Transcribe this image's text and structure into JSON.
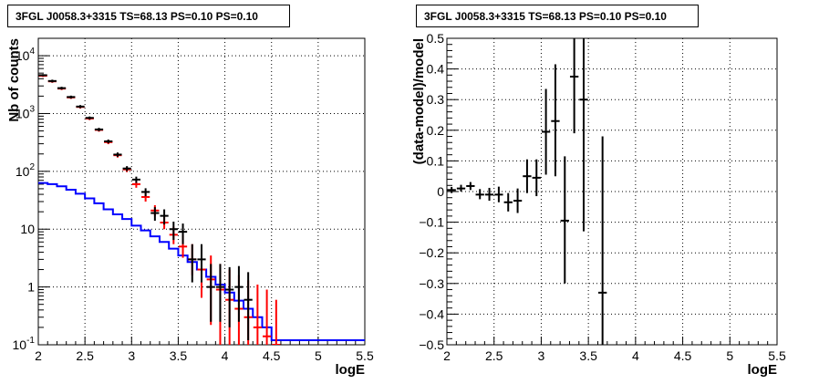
{
  "chart_data": [
    {
      "type": "line",
      "title": "3FGL J0058.3+3315 TS=68.13 PS=0.10 PS=0.10",
      "xlabel": "logE",
      "ylabel": "Nb of counts",
      "x_ticks": [
        "2",
        "2.5",
        "3",
        "3.5",
        "4",
        "4.5",
        "5",
        "5.5"
      ],
      "y_ticks": [
        "10^-1",
        "1",
        "10",
        "10^2",
        "10^3",
        "10^4"
      ],
      "xlim": [
        2,
        5.5
      ],
      "ylim": [
        0.1,
        20000
      ],
      "log_y": true,
      "grid": true,
      "series": [
        {
          "color": "#0000ff",
          "style": "step",
          "x": [
            2.0,
            2.1,
            2.2,
            2.3,
            2.4,
            2.5,
            2.6,
            2.7,
            2.8,
            2.9,
            3.0,
            3.1,
            3.2,
            3.3,
            3.4,
            3.5,
            3.6,
            3.7,
            3.8,
            3.9,
            4.0,
            4.1,
            4.2,
            4.3,
            4.4,
            4.5,
            5.5
          ],
          "values": [
            63,
            60,
            55,
            48,
            41,
            34,
            28,
            22,
            18,
            15,
            11.5,
            9.5,
            7.5,
            6,
            4.6,
            3.5,
            2.7,
            2.0,
            1.5,
            1.1,
            0.8,
            0.58,
            0.42,
            0.3,
            0.2,
            0.12,
            0.1
          ]
        },
        {
          "color": "#ff0000",
          "style": "points",
          "x": [
            2.05,
            2.15,
            2.25,
            2.35,
            2.45,
            2.55,
            2.65,
            2.75,
            2.85,
            2.95,
            3.05,
            3.15,
            3.25,
            3.35,
            3.45,
            3.55,
            3.65,
            3.75,
            3.85,
            3.95,
            4.05,
            4.15,
            4.25,
            4.35,
            4.45,
            4.55
          ],
          "values": [
            4500,
            3600,
            2700,
            1900,
            1300,
            820,
            520,
            320,
            190,
            108,
            60,
            36,
            21,
            13,
            8,
            5,
            3,
            2,
            1.35,
            0.9,
            0.6,
            0.42,
            0.3,
            0.2,
            0.14,
            0.1
          ],
          "err_low": [
            4300,
            3400,
            2550,
            1790,
            1220,
            770,
            485,
            295,
            173,
            97,
            52,
            30,
            17,
            10,
            5.5,
            3.2,
            1.6,
            0.65,
            0.22,
            0.1,
            0.1,
            0.1,
            0.1,
            0.1,
            0.1,
            0.1
          ],
          "err_high": [
            4700,
            3800,
            2850,
            2010,
            1380,
            870,
            555,
            345,
            207,
            119,
            68,
            42,
            26,
            17,
            11,
            8,
            5.5,
            4,
            3.5,
            2.5,
            2,
            1.6,
            1.3,
            1.1,
            0.9,
            0.6
          ]
        },
        {
          "color": "#000000",
          "style": "points",
          "x": [
            2.05,
            2.15,
            2.25,
            2.35,
            2.45,
            2.55,
            2.65,
            2.75,
            2.85,
            2.95,
            3.05,
            3.15,
            3.25,
            3.35,
            3.45,
            3.55,
            3.65,
            3.75,
            3.85,
            3.95,
            4.05,
            4.15,
            4.25
          ],
          "values": [
            4600,
            3650,
            2750,
            1930,
            1320,
            840,
            530,
            330,
            195,
            112,
            72,
            44,
            19,
            17,
            10,
            9,
            3,
            3,
            1,
            1,
            0.9,
            1,
            0.6
          ],
          "err_low": [
            4400,
            3450,
            2600,
            1820,
            1240,
            790,
            495,
            305,
            178,
            101,
            63,
            37,
            14,
            12,
            6.5,
            5.5,
            1.2,
            1.2,
            0.25,
            0.25,
            0.2,
            0.25,
            0.12
          ],
          "err_high": [
            4800,
            3850,
            2900,
            2040,
            1400,
            890,
            565,
            355,
            212,
            123,
            81,
            51,
            24,
            22,
            13.5,
            12.5,
            5.5,
            5.5,
            2.5,
            2.5,
            2.2,
            2.3,
            1.8
          ]
        }
      ]
    },
    {
      "type": "scatter",
      "title": "3FGL J0058.3+3315 TS=68.13 PS=0.10 PS=0.10",
      "xlabel": "logE",
      "ylabel": "(data-model)/model",
      "x_ticks": [
        "2",
        "2.5",
        "3",
        "3.5",
        "4",
        "4.5",
        "5",
        "5.5"
      ],
      "y_ticks": [
        "−0.5",
        "−0.4",
        "−0.3",
        "−0.2",
        "−0.1",
        "0",
        "0.1",
        "0.2",
        "0.3",
        "0.4",
        "0.5"
      ],
      "xlim": [
        2,
        5.5
      ],
      "ylim": [
        -0.5,
        0.5
      ],
      "grid": true,
      "series": [
        {
          "color": "#000000",
          "x": [
            2.05,
            2.15,
            2.25,
            2.35,
            2.45,
            2.55,
            2.65,
            2.75,
            2.85,
            2.95,
            3.05,
            3.15,
            3.25,
            3.35,
            3.45,
            3.65
          ],
          "values": [
            0.005,
            0.01,
            0.018,
            -0.01,
            -0.01,
            -0.01,
            -0.035,
            -0.03,
            0.05,
            0.045,
            0.195,
            0.23,
            -0.095,
            0.375,
            0.3,
            -0.33
          ],
          "err_low": [
            -0.005,
            0.0,
            0.005,
            -0.025,
            -0.03,
            -0.035,
            -0.065,
            -0.07,
            -0.005,
            -0.015,
            0.055,
            0.05,
            -0.3,
            0.19,
            -0.13,
            -0.5
          ],
          "err_high": [
            0.015,
            0.022,
            0.031,
            0.008,
            0.012,
            0.016,
            -0.005,
            0.01,
            0.105,
            0.105,
            0.335,
            0.415,
            0.115,
            0.5,
            0.5,
            0.18
          ]
        }
      ]
    }
  ]
}
